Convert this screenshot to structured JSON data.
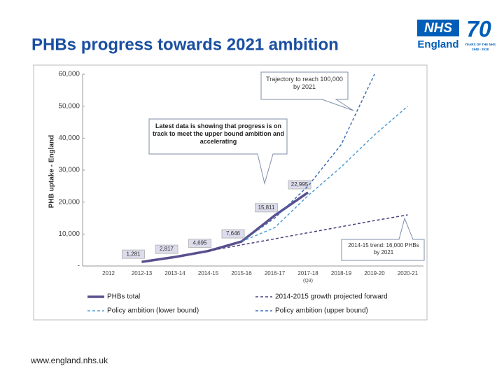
{
  "slide": {
    "title": "PHBs progress towards 2021 ambition",
    "footer": "www.england.nhs.uk",
    "logo": {
      "nhs": "NHS",
      "region": "England",
      "years": "70",
      "tagline": "YEARS OF THE NHS",
      "span": "1948 - 2018"
    }
  },
  "chart_data": {
    "type": "line",
    "y_label": "PHB uptake - England",
    "categories": [
      "2012",
      "2012-13",
      "2013-14",
      "2014-15",
      "2015-16",
      "2016-17",
      "2017-18",
      "2018-19",
      "2019-20",
      "2020-21"
    ],
    "category_note": "(Q3)",
    "ylim": [
      0,
      60000
    ],
    "yticks": [
      {
        "value": 0,
        "label": "-"
      },
      {
        "value": 10000,
        "label": "10,000"
      },
      {
        "value": 20000,
        "label": "20,000"
      },
      {
        "value": 30000,
        "label": "30,000"
      },
      {
        "value": 40000,
        "label": "40,000"
      },
      {
        "value": 50000,
        "label": "50,000"
      },
      {
        "value": 60000,
        "label": "60,000"
      }
    ],
    "grid": false,
    "series": [
      {
        "name": "PHBs total",
        "color": "#5b4f8f",
        "style": "solid",
        "values": [
          null,
          1281,
          2817,
          4695,
          7646,
          15811,
          22995,
          null,
          null,
          null
        ],
        "value_labels": [
          null,
          "1,281",
          "2,817",
          "4,695",
          "7,646",
          "15,811",
          "22,995",
          null,
          null,
          null
        ]
      },
      {
        "name": "2014-2015 growth projected forward",
        "color": "#4b3f7e",
        "style": "dashed",
        "values": [
          null,
          null,
          null,
          4695,
          6600,
          8500,
          10400,
          12300,
          14200,
          16000
        ]
      },
      {
        "name": "Policy ambition (lower bound)",
        "color": "#4f9fd8",
        "style": "dashed",
        "values": [
          null,
          null,
          null,
          null,
          7646,
          12000,
          22000,
          31000,
          41000,
          50000
        ]
      },
      {
        "name": "Policy ambition (upper bound)",
        "color": "#3d6fb8",
        "style": "dashed",
        "values": [
          null,
          null,
          null,
          null,
          7646,
          15000,
          25000,
          38000,
          60000,
          null
        ]
      }
    ],
    "callouts": [
      "Trajectory to reach 100,000 by 2021",
      "Latest data is showing that progress is on track to meet the upper bound ambition and accelerating",
      "2014-15 trend: 16,000 PHBs by 2021"
    ]
  }
}
